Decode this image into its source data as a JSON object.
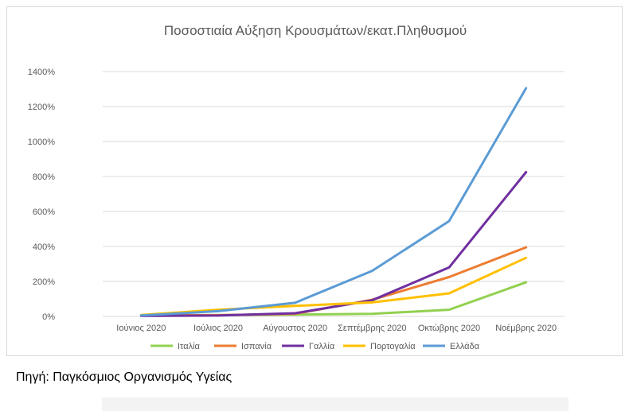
{
  "chart_data": {
    "type": "line",
    "title": "Ποσοστιαία Αύξηση Κρουσμάτων/εκατ.Πληθυσμού",
    "xlabel": "",
    "ylabel": "",
    "categories": [
      "Ιούνιος 2020",
      "Ιούλιος 2020",
      "Αύγουστος 2020",
      "Σεπτέμβρης 2020",
      "Οκτώβρης 2020",
      "Νοέμβρης 2020"
    ],
    "ylim": [
      0,
      14
    ],
    "yticks": [
      0,
      2,
      4,
      6,
      8,
      10,
      12,
      14
    ],
    "ytick_labels": [
      "0%",
      "200%",
      "400%",
      "600%",
      "800%",
      "1000%",
      "1200%",
      "1400%"
    ],
    "grid": true,
    "legend_position": "bottom",
    "series": [
      {
        "name": "Ιταλία",
        "color": "#92d050",
        "values": [
          0.05,
          0.08,
          0.1,
          0.15,
          0.38,
          1.95
        ]
      },
      {
        "name": "Ισπανία",
        "color": "#ed7d31",
        "values": [
          0.05,
          0.07,
          0.15,
          0.95,
          2.25,
          3.95
        ]
      },
      {
        "name": "Γαλλία",
        "color": "#7030a0",
        "values": [
          0.03,
          0.05,
          0.18,
          0.92,
          2.8,
          8.25
        ]
      },
      {
        "name": "Πορτογαλία",
        "color": "#ffc000",
        "values": [
          0.08,
          0.38,
          0.6,
          0.8,
          1.32,
          3.35
        ]
      },
      {
        "name": "Ελλάδα",
        "color": "#5b9bd5",
        "values": [
          0.05,
          0.3,
          0.78,
          2.6,
          5.45,
          13.05
        ]
      }
    ]
  },
  "footer": {
    "source": "Πηγή: Παγκόσμιος Οργανισμός Υγείας"
  }
}
